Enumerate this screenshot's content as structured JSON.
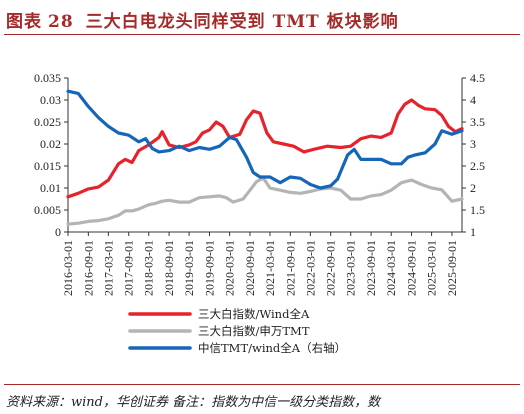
{
  "header": {
    "figure_label": "图表",
    "figure_number": "28",
    "title": "三大白电龙头同样受到 TMT 板块影响"
  },
  "footer": {
    "source": "资料来源：wind，华创证券 备注：指数为中信一级分类指数，数"
  },
  "colors": {
    "accent": "#a52a2a",
    "series1": "#e8222b",
    "series2": "#b4b4b4",
    "series3": "#1565b8"
  },
  "chart_data": {
    "type": "line",
    "x_ticks": [
      "2016-03-01",
      "2016-09-01",
      "2017-03-01",
      "2017-09-01",
      "2018-03-01",
      "2018-09-01",
      "2019-03-01",
      "2019-09-01",
      "2020-03-01",
      "2020-09-01",
      "2021-03-01",
      "2021-09-01",
      "2022-03-01",
      "2022-09-01",
      "2023-03-01",
      "2023-09-01",
      "2024-03-01",
      "2024-09-01",
      "2025-03-01",
      "2025-09-01"
    ],
    "x_range": [
      "2016-03-01",
      "2025-12-01"
    ],
    "y_left": {
      "min": 0,
      "max": 0.035,
      "ticks": [
        "0",
        "0.005",
        "0.01",
        "0.015",
        "0.02",
        "0.025",
        "0.03",
        "0.035"
      ]
    },
    "y_right": {
      "min": 1,
      "max": 4.5,
      "ticks": [
        "1",
        "1.5",
        "2",
        "2.5",
        "3",
        "3.5",
        "4",
        "4.5"
      ]
    },
    "grid": false,
    "legend_position": "bottom",
    "series": [
      {
        "name": "三大白指数/Wind全A",
        "axis": "left",
        "points": [
          [
            "2016-03-01",
            0.008
          ],
          [
            "2016-06-01",
            0.0088
          ],
          [
            "2016-09-01",
            0.0098
          ],
          [
            "2016-12-01",
            0.0102
          ],
          [
            "2017-03-01",
            0.0118
          ],
          [
            "2017-06-01",
            0.0155
          ],
          [
            "2017-08-01",
            0.0165
          ],
          [
            "2017-10-01",
            0.0158
          ],
          [
            "2017-12-01",
            0.0185
          ],
          [
            "2018-03-01",
            0.0198
          ],
          [
            "2018-06-01",
            0.0215
          ],
          [
            "2018-07-01",
            0.0228
          ],
          [
            "2018-09-01",
            0.0198
          ],
          [
            "2018-12-01",
            0.0192
          ],
          [
            "2019-03-01",
            0.0198
          ],
          [
            "2019-05-01",
            0.0205
          ],
          [
            "2019-07-01",
            0.0225
          ],
          [
            "2019-09-01",
            0.0232
          ],
          [
            "2019-11-01",
            0.025
          ],
          [
            "2020-01-01",
            0.024
          ],
          [
            "2020-03-01",
            0.0215
          ],
          [
            "2020-06-01",
            0.0222
          ],
          [
            "2020-08-01",
            0.0255
          ],
          [
            "2020-10-01",
            0.0275
          ],
          [
            "2020-12-01",
            0.027
          ],
          [
            "2021-02-01",
            0.0225
          ],
          [
            "2021-04-01",
            0.0205
          ],
          [
            "2021-07-01",
            0.02
          ],
          [
            "2021-10-01",
            0.0195
          ],
          [
            "2022-01-01",
            0.0182
          ],
          [
            "2022-04-01",
            0.0188
          ],
          [
            "2022-08-01",
            0.0195
          ],
          [
            "2022-12-01",
            0.0192
          ],
          [
            "2023-03-01",
            0.0195
          ],
          [
            "2023-06-01",
            0.0212
          ],
          [
            "2023-09-01",
            0.0218
          ],
          [
            "2023-12-01",
            0.0215
          ],
          [
            "2024-03-01",
            0.0225
          ],
          [
            "2024-05-01",
            0.0268
          ],
          [
            "2024-07-01",
            0.029
          ],
          [
            "2024-09-01",
            0.03
          ],
          [
            "2024-11-01",
            0.0288
          ],
          [
            "2025-01-01",
            0.028
          ],
          [
            "2025-04-01",
            0.0278
          ],
          [
            "2025-06-01",
            0.0265
          ],
          [
            "2025-08-01",
            0.024
          ],
          [
            "2025-10-01",
            0.0228
          ],
          [
            "2025-12-01",
            0.0235
          ]
        ]
      },
      {
        "name": "三大白指数/申万TMT",
        "axis": "left",
        "points": [
          [
            "2016-03-01",
            0.0018
          ],
          [
            "2016-06-01",
            0.002
          ],
          [
            "2016-09-01",
            0.0024
          ],
          [
            "2016-12-01",
            0.0026
          ],
          [
            "2017-03-01",
            0.003
          ],
          [
            "2017-06-01",
            0.0038
          ],
          [
            "2017-08-01",
            0.0048
          ],
          [
            "2017-10-01",
            0.0048
          ],
          [
            "2017-12-01",
            0.0052
          ],
          [
            "2018-03-01",
            0.0062
          ],
          [
            "2018-05-01",
            0.0065
          ],
          [
            "2018-07-01",
            0.007
          ],
          [
            "2018-09-01",
            0.0072
          ],
          [
            "2018-12-01",
            0.0068
          ],
          [
            "2019-03-01",
            0.0068
          ],
          [
            "2019-06-01",
            0.0078
          ],
          [
            "2019-09-01",
            0.008
          ],
          [
            "2019-12-01",
            0.0082
          ],
          [
            "2020-02-01",
            0.0078
          ],
          [
            "2020-04-01",
            0.0068
          ],
          [
            "2020-07-01",
            0.0075
          ],
          [
            "2020-09-01",
            0.0095
          ],
          [
            "2020-11-01",
            0.0115
          ],
          [
            "2021-01-01",
            0.0122
          ],
          [
            "2021-03-01",
            0.01
          ],
          [
            "2021-06-01",
            0.0095
          ],
          [
            "2021-09-01",
            0.009
          ],
          [
            "2021-12-01",
            0.0088
          ],
          [
            "2022-03-01",
            0.0092
          ],
          [
            "2022-06-01",
            0.0098
          ],
          [
            "2022-09-01",
            0.01
          ],
          [
            "2022-12-01",
            0.0095
          ],
          [
            "2023-03-01",
            0.0075
          ],
          [
            "2023-06-01",
            0.0075
          ],
          [
            "2023-09-01",
            0.0082
          ],
          [
            "2023-12-01",
            0.0085
          ],
          [
            "2024-03-01",
            0.0095
          ],
          [
            "2024-06-01",
            0.0112
          ],
          [
            "2024-09-01",
            0.0118
          ],
          [
            "2024-12-01",
            0.0108
          ],
          [
            "2025-03-01",
            0.01
          ],
          [
            "2025-06-01",
            0.0096
          ],
          [
            "2025-09-01",
            0.007
          ],
          [
            "2025-12-01",
            0.0075
          ]
        ]
      },
      {
        "name": "中信TMT/wind全A（右轴）",
        "axis": "right",
        "points": [
          [
            "2016-03-01",
            4.2
          ],
          [
            "2016-06-01",
            4.15
          ],
          [
            "2016-09-01",
            3.85
          ],
          [
            "2016-12-01",
            3.6
          ],
          [
            "2017-03-01",
            3.4
          ],
          [
            "2017-06-01",
            3.25
          ],
          [
            "2017-09-01",
            3.2
          ],
          [
            "2017-12-01",
            3.05
          ],
          [
            "2018-02-01",
            3.12
          ],
          [
            "2018-04-01",
            2.9
          ],
          [
            "2018-06-01",
            2.82
          ],
          [
            "2018-09-01",
            2.85
          ],
          [
            "2018-12-01",
            2.95
          ],
          [
            "2019-03-01",
            2.85
          ],
          [
            "2019-06-01",
            2.92
          ],
          [
            "2019-09-01",
            2.88
          ],
          [
            "2019-12-01",
            2.95
          ],
          [
            "2020-03-01",
            3.15
          ],
          [
            "2020-05-01",
            3.1
          ],
          [
            "2020-08-01",
            2.7
          ],
          [
            "2020-10-01",
            2.35
          ],
          [
            "2020-12-01",
            2.25
          ],
          [
            "2021-03-01",
            2.25
          ],
          [
            "2021-06-01",
            2.12
          ],
          [
            "2021-09-01",
            2.25
          ],
          [
            "2021-12-01",
            2.22
          ],
          [
            "2022-03-01",
            2.08
          ],
          [
            "2022-06-01",
            2.0
          ],
          [
            "2022-09-01",
            2.05
          ],
          [
            "2022-11-01",
            2.2
          ],
          [
            "2023-02-01",
            2.75
          ],
          [
            "2023-04-01",
            2.88
          ],
          [
            "2023-06-01",
            2.65
          ],
          [
            "2023-09-01",
            2.65
          ],
          [
            "2023-12-01",
            2.65
          ],
          [
            "2024-03-01",
            2.55
          ],
          [
            "2024-06-01",
            2.55
          ],
          [
            "2024-08-01",
            2.7
          ],
          [
            "2024-10-01",
            2.75
          ],
          [
            "2025-01-01",
            2.8
          ],
          [
            "2025-04-01",
            3.0
          ],
          [
            "2025-06-01",
            3.3
          ],
          [
            "2025-09-01",
            3.22
          ],
          [
            "2025-12-01",
            3.3
          ]
        ]
      }
    ]
  }
}
